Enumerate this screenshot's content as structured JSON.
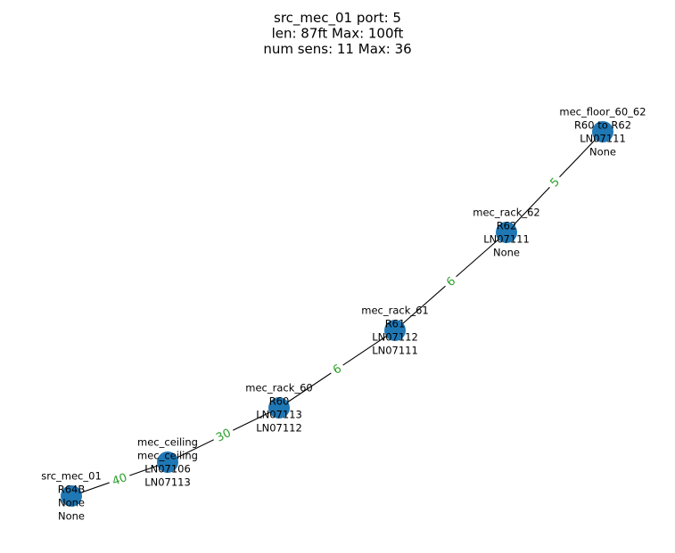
{
  "title": {
    "lines": [
      "src_mec_01 port: 5",
      "len: 87ft Max: 100ft",
      "num sens: 11 Max: 36"
    ]
  },
  "colors": {
    "node": "#1f77b4",
    "edge": "#000000",
    "edge_label": "#2ca02c",
    "edge_label_bg": "#ffffff",
    "text": "#000000"
  },
  "nodes": [
    {
      "id": "src_mec_01",
      "lines": [
        "src_mec_01",
        "R64B",
        "None",
        "None"
      ]
    },
    {
      "id": "mec_ceiling",
      "lines": [
        "mec_ceiling",
        "mec_ceiling",
        "LN07106",
        "LN07113"
      ]
    },
    {
      "id": "mec_rack_60",
      "lines": [
        "mec_rack_60",
        "R60",
        "LN07113",
        "LN07112"
      ]
    },
    {
      "id": "mec_rack_61",
      "lines": [
        "mec_rack_61",
        "R61",
        "LN07112",
        "LN07111"
      ]
    },
    {
      "id": "mec_rack_62",
      "lines": [
        "mec_rack_62",
        "R62",
        "LN07111",
        "None"
      ]
    },
    {
      "id": "mec_floor_60_62",
      "lines": [
        "mec_floor_60_62",
        "R60 to R62",
        "LN07111",
        "None"
      ]
    }
  ],
  "edges": [
    {
      "from": "src_mec_01",
      "to": "mec_ceiling",
      "label": "40"
    },
    {
      "from": "mec_ceiling",
      "to": "mec_rack_60",
      "label": "30"
    },
    {
      "from": "mec_rack_60",
      "to": "mec_rack_61",
      "label": "6"
    },
    {
      "from": "mec_rack_61",
      "to": "mec_rack_62",
      "label": "6"
    },
    {
      "from": "mec_rack_62",
      "to": "mec_floor_60_62",
      "label": "5"
    }
  ]
}
